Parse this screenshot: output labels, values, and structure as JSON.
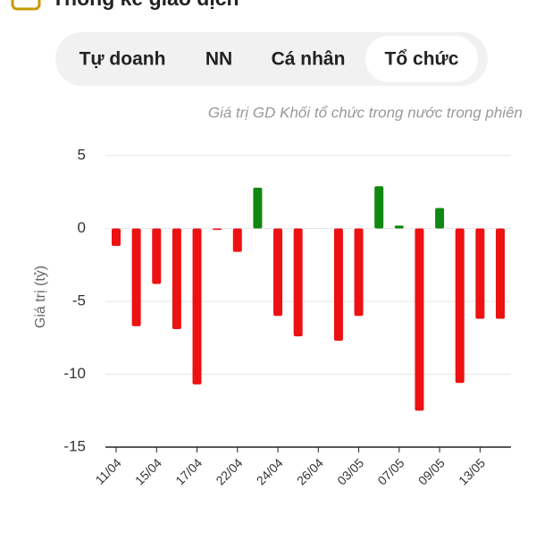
{
  "header": {
    "title": "Thống kê giao dịch"
  },
  "tabs": [
    "Tự doanh",
    "NN",
    "Cá nhân",
    "Tổ chức"
  ],
  "active_tab": 3,
  "chart_data": {
    "type": "bar",
    "subtitle": "Giá trị GD Khối tổ chức trong nước trong phiên",
    "y_label": "Giá trị (tỷ)",
    "categories": [
      "11/04",
      null,
      "15/04",
      null,
      "17/04",
      null,
      "22/04",
      null,
      "24/04",
      null,
      "26/04",
      null,
      "03/05",
      null,
      "07/05",
      null,
      "09/05",
      null,
      "13/05",
      null
    ],
    "values": [
      -1.2,
      -6.7,
      -3.8,
      -6.9,
      -10.7,
      -0.1,
      -1.6,
      2.8,
      -6.0,
      -7.4,
      0,
      -7.7,
      -6.0,
      2.9,
      0.2,
      -12.5,
      1.4,
      -10.6,
      -6.2,
      -6.2
    ],
    "positive_color": "#118811",
    "negative_color": "#ee1111",
    "ylim": [
      -15,
      5
    ],
    "yticks": [
      5,
      0,
      -5,
      -10,
      -15
    ],
    "grid": true
  }
}
